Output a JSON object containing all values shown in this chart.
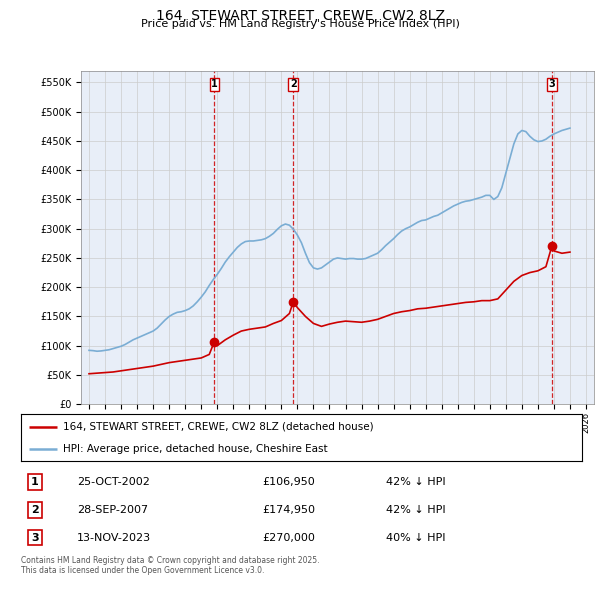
{
  "title": "164, STEWART STREET, CREWE, CW2 8LZ",
  "subtitle": "Price paid vs. HM Land Registry's House Price Index (HPI)",
  "yticks": [
    0,
    50000,
    100000,
    150000,
    200000,
    250000,
    300000,
    350000,
    400000,
    450000,
    500000,
    550000
  ],
  "ytick_labels": [
    "£0",
    "£50K",
    "£100K",
    "£150K",
    "£200K",
    "£250K",
    "£300K",
    "£350K",
    "£400K",
    "£450K",
    "£500K",
    "£550K"
  ],
  "xlim_start": 1994.5,
  "xlim_end": 2026.5,
  "ylim_min": 0,
  "ylim_max": 570000,
  "red_line_color": "#cc0000",
  "blue_line_color": "#7aadd4",
  "vline_color": "#cc0000",
  "grid_color": "#cccccc",
  "bg_color": "#e8eef8",
  "legend_label_red": "164, STEWART STREET, CREWE, CW2 8LZ (detached house)",
  "legend_label_blue": "HPI: Average price, detached house, Cheshire East",
  "transactions": [
    {
      "num": 1,
      "date_x": 2002.82,
      "price": 106950,
      "label": "25-OCT-2002",
      "price_label": "£106,950",
      "hpi_label": "42% ↓ HPI"
    },
    {
      "num": 2,
      "date_x": 2007.74,
      "price": 174950,
      "label": "28-SEP-2007",
      "price_label": "£174,950",
      "hpi_label": "42% ↓ HPI"
    },
    {
      "num": 3,
      "date_x": 2023.87,
      "price": 270000,
      "label": "13-NOV-2023",
      "price_label": "£270,000",
      "hpi_label": "40% ↓ HPI"
    }
  ],
  "footer": "Contains HM Land Registry data © Crown copyright and database right 2025.\nThis data is licensed under the Open Government Licence v3.0.",
  "hpi_data_x": [
    1995.0,
    1995.25,
    1995.5,
    1995.75,
    1996.0,
    1996.25,
    1996.5,
    1996.75,
    1997.0,
    1997.25,
    1997.5,
    1997.75,
    1998.0,
    1998.25,
    1998.5,
    1998.75,
    1999.0,
    1999.25,
    1999.5,
    1999.75,
    2000.0,
    2000.25,
    2000.5,
    2000.75,
    2001.0,
    2001.25,
    2001.5,
    2001.75,
    2002.0,
    2002.25,
    2002.5,
    2002.75,
    2003.0,
    2003.25,
    2003.5,
    2003.75,
    2004.0,
    2004.25,
    2004.5,
    2004.75,
    2005.0,
    2005.25,
    2005.5,
    2005.75,
    2006.0,
    2006.25,
    2006.5,
    2006.75,
    2007.0,
    2007.25,
    2007.5,
    2007.75,
    2008.0,
    2008.25,
    2008.5,
    2008.75,
    2009.0,
    2009.25,
    2009.5,
    2009.75,
    2010.0,
    2010.25,
    2010.5,
    2010.75,
    2011.0,
    2011.25,
    2011.5,
    2011.75,
    2012.0,
    2012.25,
    2012.5,
    2012.75,
    2013.0,
    2013.25,
    2013.5,
    2013.75,
    2014.0,
    2014.25,
    2014.5,
    2014.75,
    2015.0,
    2015.25,
    2015.5,
    2015.75,
    2016.0,
    2016.25,
    2016.5,
    2016.75,
    2017.0,
    2017.25,
    2017.5,
    2017.75,
    2018.0,
    2018.25,
    2018.5,
    2018.75,
    2019.0,
    2019.25,
    2019.5,
    2019.75,
    2020.0,
    2020.25,
    2020.5,
    2020.75,
    2021.0,
    2021.25,
    2021.5,
    2021.75,
    2022.0,
    2022.25,
    2022.5,
    2022.75,
    2023.0,
    2023.25,
    2023.5,
    2023.75,
    2024.0,
    2024.25,
    2024.5,
    2024.75,
    2025.0
  ],
  "hpi_data_y": [
    92000,
    91500,
    90500,
    91000,
    92000,
    93000,
    95000,
    97000,
    99000,
    102000,
    106000,
    110000,
    113000,
    116000,
    119000,
    122000,
    125000,
    130000,
    137000,
    144000,
    150000,
    154000,
    157000,
    158000,
    160000,
    163000,
    168000,
    175000,
    183000,
    192000,
    203000,
    213000,
    222000,
    232000,
    243000,
    252000,
    260000,
    268000,
    274000,
    278000,
    279000,
    279000,
    280000,
    281000,
    283000,
    287000,
    292000,
    299000,
    305000,
    308000,
    306000,
    299000,
    289000,
    276000,
    258000,
    242000,
    233000,
    231000,
    233000,
    238000,
    243000,
    248000,
    250000,
    249000,
    248000,
    249000,
    249000,
    248000,
    248000,
    249000,
    252000,
    255000,
    258000,
    264000,
    271000,
    277000,
    283000,
    290000,
    296000,
    300000,
    303000,
    307000,
    311000,
    314000,
    315000,
    318000,
    321000,
    323000,
    327000,
    331000,
    335000,
    339000,
    342000,
    345000,
    347000,
    348000,
    350000,
    352000,
    354000,
    357000,
    357000,
    350000,
    355000,
    370000,
    395000,
    420000,
    445000,
    462000,
    468000,
    466000,
    458000,
    452000,
    449000,
    450000,
    453000,
    458000,
    462000,
    465000,
    468000,
    470000,
    472000
  ],
  "red_data_x": [
    1995.0,
    1995.5,
    1996.0,
    1996.5,
    1997.0,
    1997.5,
    1998.0,
    1998.5,
    1999.0,
    1999.5,
    2000.0,
    2000.5,
    2001.0,
    2001.5,
    2002.0,
    2002.5,
    2002.82,
    2003.0,
    2003.5,
    2004.0,
    2004.5,
    2005.0,
    2005.5,
    2006.0,
    2006.5,
    2007.0,
    2007.5,
    2007.74,
    2008.0,
    2008.5,
    2009.0,
    2009.5,
    2010.0,
    2010.5,
    2011.0,
    2011.5,
    2012.0,
    2012.5,
    2013.0,
    2013.5,
    2014.0,
    2014.5,
    2015.0,
    2015.5,
    2016.0,
    2016.5,
    2017.0,
    2017.5,
    2018.0,
    2018.5,
    2019.0,
    2019.5,
    2020.0,
    2020.5,
    2021.0,
    2021.5,
    2022.0,
    2022.5,
    2023.0,
    2023.5,
    2023.87,
    2024.0,
    2024.5,
    2025.0
  ],
  "red_data_y": [
    52000,
    53000,
    54000,
    55000,
    57000,
    59000,
    61000,
    63000,
    65000,
    68000,
    71000,
    73000,
    75000,
    77000,
    79000,
    85000,
    106950,
    100000,
    110000,
    118000,
    125000,
    128000,
    130000,
    132000,
    138000,
    143000,
    155000,
    174950,
    165000,
    150000,
    138000,
    133000,
    137000,
    140000,
    142000,
    141000,
    140000,
    142000,
    145000,
    150000,
    155000,
    158000,
    160000,
    163000,
    164000,
    166000,
    168000,
    170000,
    172000,
    174000,
    175000,
    177000,
    177000,
    180000,
    195000,
    210000,
    220000,
    225000,
    228000,
    235000,
    270000,
    262000,
    258000,
    260000
  ]
}
